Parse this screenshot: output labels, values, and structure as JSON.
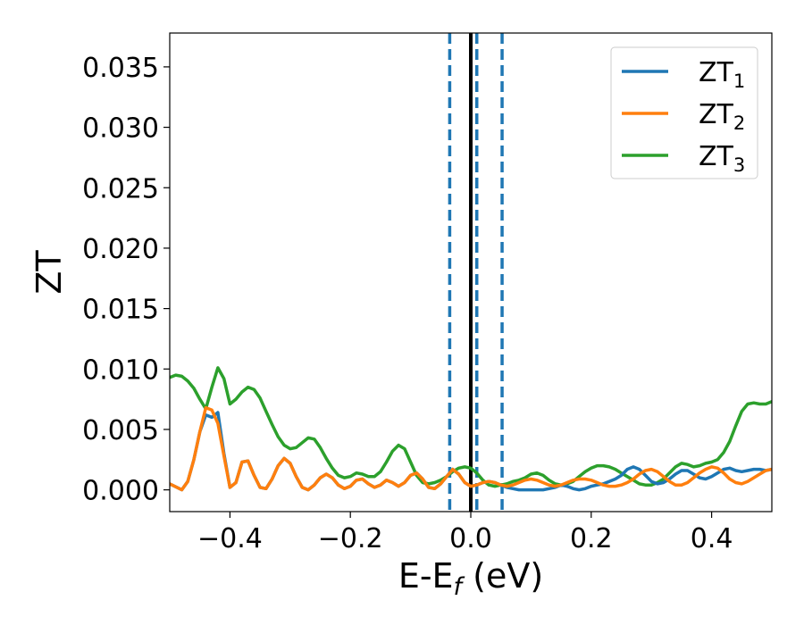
{
  "chart_data": {
    "type": "line",
    "xlabel": "E-E",
    "xlabel_sub": "f",
    "xlabel_unit": " (eV)",
    "ylabel": "ZT",
    "xlim": [
      -0.5,
      0.5
    ],
    "ylim": [
      -0.0018,
      0.0378
    ],
    "xticks": [
      -0.4,
      -0.2,
      0.0,
      0.2,
      0.4
    ],
    "xtick_labels": [
      "−0.4",
      "−0.2",
      "0.0",
      "0.2",
      "0.4"
    ],
    "yticks": [
      0.0,
      0.005,
      0.01,
      0.015,
      0.02,
      0.025,
      0.03,
      0.035
    ],
    "ytick_labels": [
      "0.000",
      "0.005",
      "0.010",
      "0.015",
      "0.020",
      "0.025",
      "0.030",
      "0.035"
    ],
    "grid": false,
    "legend_position": "top-right",
    "vlines": [
      {
        "x": 0.0,
        "style": "solid",
        "color": "#000000"
      },
      {
        "x": -0.035,
        "style": "dashed",
        "color": "#1f77b4"
      },
      {
        "x": 0.01,
        "style": "dashed",
        "color": "#1f77b4"
      },
      {
        "x": 0.052,
        "style": "dashed",
        "color": "#1f77b4"
      }
    ],
    "series": [
      {
        "name": "ZT",
        "sub": "1",
        "color": "#1f77b4",
        "x": [
          -0.5,
          -0.48,
          -0.47,
          -0.46,
          -0.45,
          -0.44,
          -0.43,
          -0.42,
          -0.41,
          -0.4,
          -0.39,
          -0.38,
          -0.37,
          -0.36,
          -0.35,
          -0.34,
          -0.33,
          -0.32,
          -0.31,
          -0.3,
          -0.29,
          -0.28,
          -0.27,
          -0.26,
          -0.25,
          -0.24,
          -0.23,
          -0.22,
          -0.21,
          -0.2,
          -0.19,
          -0.18,
          -0.17,
          -0.16,
          -0.15,
          -0.14,
          -0.13,
          -0.12,
          -0.11,
          -0.1,
          -0.09,
          -0.08,
          -0.07,
          -0.06,
          -0.05,
          -0.04,
          -0.03,
          -0.02,
          -0.01,
          0.0,
          0.01,
          0.02,
          0.03,
          0.04,
          0.05,
          0.06,
          0.07,
          0.08,
          0.09,
          0.1,
          0.11,
          0.12,
          0.13,
          0.14,
          0.15,
          0.16,
          0.17,
          0.18,
          0.19,
          0.2,
          0.21,
          0.22,
          0.23,
          0.24,
          0.25,
          0.26,
          0.27,
          0.28,
          0.29,
          0.3,
          0.31,
          0.32,
          0.33,
          0.34,
          0.35,
          0.36,
          0.37,
          0.38,
          0.39,
          0.4,
          0.41,
          0.42,
          0.43,
          0.44,
          0.45,
          0.46,
          0.47,
          0.48,
          0.49,
          0.5
        ],
        "y": [
          0.0005,
          0.0,
          0.0007,
          0.0025,
          0.0048,
          0.0062,
          0.006,
          0.0064,
          0.003,
          0.0002,
          0.0006,
          0.0023,
          0.0024,
          0.0012,
          0.0002,
          0.0001,
          0.0009,
          0.002,
          0.0026,
          0.0022,
          0.0011,
          0.0002,
          0.0,
          0.0004,
          0.001,
          0.0013,
          0.001,
          0.0004,
          0.0001,
          0.0003,
          0.0008,
          0.0009,
          0.0005,
          0.0002,
          0.0004,
          0.0008,
          0.0006,
          0.0003,
          0.0006,
          0.0012,
          0.0014,
          0.0009,
          0.0002,
          0.0001,
          0.0005,
          0.0011,
          0.0017,
          0.0013,
          0.0006,
          0.0003,
          0.0004,
          0.0006,
          0.0007,
          0.0006,
          0.0004,
          0.0002,
          0.0001,
          0.0,
          0.0,
          0.0,
          0.0,
          0.0,
          0.0001,
          0.0002,
          0.0004,
          0.0003,
          0.0001,
          0.0,
          0.0001,
          0.0003,
          0.0004,
          0.0005,
          0.0007,
          0.0009,
          0.0012,
          0.0017,
          0.0019,
          0.0017,
          0.0012,
          0.0007,
          0.0005,
          0.0006,
          0.0009,
          0.0013,
          0.0016,
          0.0016,
          0.0013,
          0.001,
          0.0009,
          0.0011,
          0.0014,
          0.0017,
          0.0018,
          0.0016,
          0.0015,
          0.0016,
          0.0017,
          0.0017,
          0.0016,
          0.0017
        ]
      },
      {
        "name": "ZT",
        "sub": "2",
        "color": "#ff7f0e",
        "x": [
          -0.5,
          -0.48,
          -0.47,
          -0.46,
          -0.45,
          -0.44,
          -0.43,
          -0.42,
          -0.41,
          -0.4,
          -0.39,
          -0.38,
          -0.37,
          -0.36,
          -0.35,
          -0.34,
          -0.33,
          -0.32,
          -0.31,
          -0.3,
          -0.29,
          -0.28,
          -0.27,
          -0.26,
          -0.25,
          -0.24,
          -0.23,
          -0.22,
          -0.21,
          -0.2,
          -0.19,
          -0.18,
          -0.17,
          -0.16,
          -0.15,
          -0.14,
          -0.13,
          -0.12,
          -0.11,
          -0.1,
          -0.09,
          -0.08,
          -0.07,
          -0.06,
          -0.05,
          -0.04,
          -0.03,
          -0.02,
          -0.01,
          0.0,
          0.01,
          0.02,
          0.03,
          0.04,
          0.05,
          0.06,
          0.07,
          0.08,
          0.09,
          0.1,
          0.11,
          0.12,
          0.13,
          0.14,
          0.15,
          0.16,
          0.17,
          0.18,
          0.19,
          0.2,
          0.21,
          0.22,
          0.23,
          0.24,
          0.25,
          0.26,
          0.27,
          0.28,
          0.29,
          0.3,
          0.31,
          0.32,
          0.33,
          0.34,
          0.35,
          0.36,
          0.37,
          0.38,
          0.39,
          0.4,
          0.41,
          0.42,
          0.43,
          0.44,
          0.45,
          0.46,
          0.47,
          0.48,
          0.49,
          0.5
        ],
        "y": [
          0.0005,
          0.0,
          0.0007,
          0.0025,
          0.0048,
          0.0068,
          0.0066,
          0.0055,
          0.0028,
          0.0002,
          0.0006,
          0.0023,
          0.0024,
          0.0012,
          0.0002,
          0.0001,
          0.0009,
          0.002,
          0.0026,
          0.0022,
          0.0011,
          0.0002,
          0.0,
          0.0004,
          0.001,
          0.0013,
          0.001,
          0.0004,
          0.0001,
          0.0003,
          0.0008,
          0.0009,
          0.0005,
          0.0002,
          0.0004,
          0.0008,
          0.0006,
          0.0003,
          0.0006,
          0.0012,
          0.0014,
          0.0009,
          0.0002,
          0.0001,
          0.0005,
          0.0011,
          0.0017,
          0.0013,
          0.0006,
          0.0003,
          0.0004,
          0.0006,
          0.0007,
          0.0006,
          0.0004,
          0.0003,
          0.0004,
          0.0006,
          0.0008,
          0.0009,
          0.0008,
          0.0006,
          0.0004,
          0.0003,
          0.0004,
          0.0006,
          0.0008,
          0.0009,
          0.0009,
          0.0008,
          0.0006,
          0.0004,
          0.0003,
          0.0003,
          0.0004,
          0.0006,
          0.0009,
          0.0013,
          0.0016,
          0.0017,
          0.0015,
          0.0011,
          0.0007,
          0.0004,
          0.0004,
          0.0006,
          0.001,
          0.0014,
          0.0017,
          0.0019,
          0.0018,
          0.0014,
          0.0009,
          0.0006,
          0.0005,
          0.0007,
          0.001,
          0.0013,
          0.0016,
          0.0017
        ]
      },
      {
        "name": "ZT",
        "sub": "3",
        "color": "#2ca02c",
        "x": [
          -0.5,
          -0.49,
          -0.48,
          -0.47,
          -0.46,
          -0.45,
          -0.44,
          -0.43,
          -0.42,
          -0.41,
          -0.4,
          -0.39,
          -0.38,
          -0.37,
          -0.36,
          -0.35,
          -0.34,
          -0.33,
          -0.32,
          -0.31,
          -0.3,
          -0.29,
          -0.28,
          -0.27,
          -0.26,
          -0.25,
          -0.24,
          -0.23,
          -0.22,
          -0.21,
          -0.2,
          -0.19,
          -0.18,
          -0.17,
          -0.16,
          -0.15,
          -0.14,
          -0.13,
          -0.12,
          -0.11,
          -0.1,
          -0.09,
          -0.08,
          -0.07,
          -0.06,
          -0.05,
          -0.04,
          -0.03,
          -0.02,
          -0.01,
          0.0,
          0.01,
          0.02,
          0.03,
          0.04,
          0.05,
          0.06,
          0.07,
          0.08,
          0.09,
          0.1,
          0.11,
          0.12,
          0.13,
          0.14,
          0.15,
          0.16,
          0.17,
          0.18,
          0.19,
          0.2,
          0.21,
          0.22,
          0.23,
          0.24,
          0.25,
          0.26,
          0.27,
          0.28,
          0.29,
          0.3,
          0.31,
          0.32,
          0.33,
          0.34,
          0.35,
          0.36,
          0.37,
          0.38,
          0.39,
          0.4,
          0.41,
          0.42,
          0.43,
          0.44,
          0.45,
          0.46,
          0.47,
          0.48,
          0.49,
          0.5
        ],
        "y": [
          0.0093,
          0.0095,
          0.0094,
          0.009,
          0.0084,
          0.0075,
          0.0067,
          0.0085,
          0.0101,
          0.0092,
          0.0071,
          0.0075,
          0.0081,
          0.0085,
          0.0083,
          0.0076,
          0.0065,
          0.0054,
          0.0044,
          0.0037,
          0.0034,
          0.0035,
          0.0039,
          0.0043,
          0.0042,
          0.0035,
          0.0026,
          0.0018,
          0.0012,
          0.001,
          0.0011,
          0.0014,
          0.0013,
          0.0011,
          0.0011,
          0.0015,
          0.0023,
          0.0032,
          0.0037,
          0.0034,
          0.0023,
          0.0012,
          0.0006,
          0.0005,
          0.0006,
          0.0008,
          0.0011,
          0.0015,
          0.0018,
          0.0019,
          0.0018,
          0.0014,
          0.0008,
          0.0004,
          0.0003,
          0.0004,
          0.0005,
          0.0007,
          0.0008,
          0.001,
          0.0013,
          0.0014,
          0.0012,
          0.0008,
          0.0005,
          0.0004,
          0.0005,
          0.0007,
          0.0011,
          0.0015,
          0.0018,
          0.002,
          0.002,
          0.0019,
          0.0017,
          0.0014,
          0.0011,
          0.0008,
          0.0005,
          0.0004,
          0.0004,
          0.0006,
          0.0009,
          0.0014,
          0.0019,
          0.0022,
          0.0021,
          0.0019,
          0.002,
          0.0022,
          0.0023,
          0.0025,
          0.0031,
          0.004,
          0.0053,
          0.0065,
          0.0071,
          0.0072,
          0.0071,
          0.0071,
          0.0073
        ]
      }
    ]
  }
}
